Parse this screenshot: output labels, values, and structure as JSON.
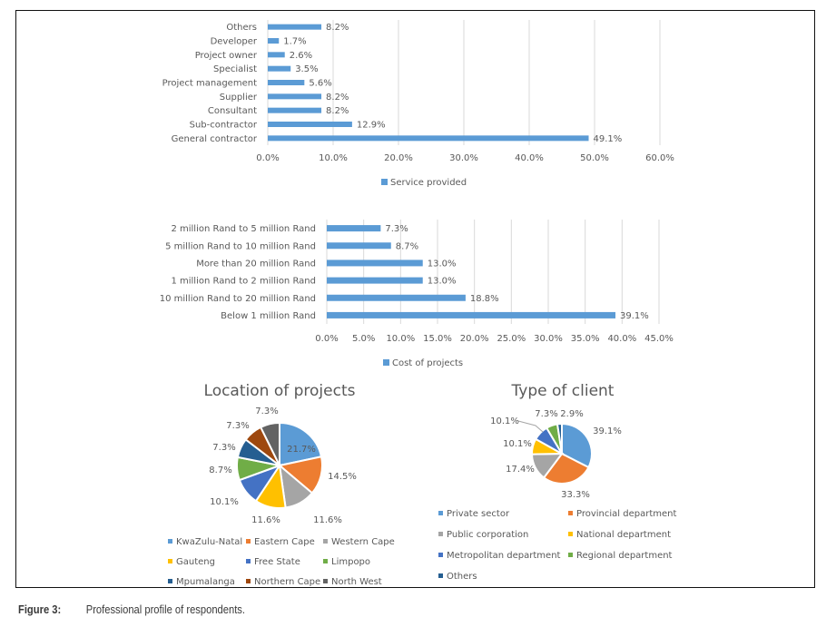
{
  "caption": {
    "figure_label": "Figure 3:",
    "text": "Professional profile of respondents."
  },
  "chart_data": [
    {
      "type": "bar",
      "orientation": "horizontal",
      "title": "",
      "categories": [
        "Others",
        "Developer",
        "Project owner",
        "Specialist",
        "Project management",
        "Supplier",
        "Consultant",
        "Sub-contractor",
        "General contractor"
      ],
      "series": [
        {
          "name": "Service provided",
          "values": [
            8.2,
            1.7,
            2.6,
            3.5,
            5.6,
            8.2,
            8.2,
            12.9,
            49.1
          ],
          "color": "#5B9BD5"
        }
      ],
      "data_labels": [
        "8.2%",
        "1.7%",
        "2.6%",
        "3.5%",
        "5.6%",
        "8.2%",
        "8.2%",
        "12.9%",
        "49.1%"
      ],
      "xlim": [
        0,
        60
      ],
      "xticks": [
        "0.0%",
        "10.0%",
        "20.0%",
        "30.0%",
        "40.0%",
        "50.0%",
        "60.0%"
      ],
      "xtick_values": [
        0,
        10,
        20,
        30,
        40,
        50,
        60
      ],
      "grid": true,
      "legend": "bottom",
      "xlabel": "",
      "ylabel": ""
    },
    {
      "type": "bar",
      "orientation": "horizontal",
      "title": "",
      "categories": [
        "2 million Rand to 5 million Rand",
        "5 million Rand to 10 million Rand",
        "More than 20 million Rand",
        "1 million Rand to 2 million Rand",
        "10 million Rand to 20 million Rand",
        "Below  1 million Rand"
      ],
      "series": [
        {
          "name": "Cost of projects",
          "values": [
            7.3,
            8.7,
            13.0,
            13.0,
            18.8,
            39.1
          ],
          "color": "#5B9BD5"
        }
      ],
      "data_labels": [
        "7.3%",
        "8.7%",
        "13.0%",
        "13.0%",
        "18.8%",
        "39.1%"
      ],
      "xlim": [
        0,
        45
      ],
      "xticks": [
        "0.0%",
        "5.0%",
        "10.0%",
        "15.0%",
        "20.0%",
        "25.0%",
        "30.0%",
        "35.0%",
        "40.0%",
        "45.0%"
      ],
      "xtick_values": [
        0,
        5,
        10,
        15,
        20,
        25,
        30,
        35,
        40,
        45
      ],
      "grid": true,
      "legend": "bottom",
      "xlabel": "",
      "ylabel": ""
    },
    {
      "type": "pie",
      "title": "Location of projects",
      "categories": [
        "KwaZulu-Natal",
        "Eastern Cape",
        "Western Cape",
        "Gauteng",
        "Free State",
        "Limpopo",
        "Mpumalanga",
        "Northern Cape",
        "North West"
      ],
      "values": [
        21.7,
        14.5,
        11.6,
        11.6,
        10.1,
        8.7,
        7.3,
        7.3,
        7.3
      ],
      "data_labels": [
        "21.7%",
        "14.5%",
        "11.6%",
        "11.6%",
        "10.1%",
        "8.7%",
        "7.3%",
        "7.3%",
        "7.3%"
      ],
      "colors": [
        "#5B9BD5",
        "#ED7D31",
        "#A5A5A5",
        "#FFC000",
        "#4472C4",
        "#70AD47",
        "#255E91",
        "#9E480E",
        "#636363"
      ],
      "legend": "bottom"
    },
    {
      "type": "pie",
      "title": "Type of client",
      "categories": [
        "Private sector",
        "Provincial department",
        "Public corporation",
        "National department",
        "Metropolitan department",
        "Regional department",
        "Others"
      ],
      "values": [
        39.1,
        33.3,
        17.4,
        10.1,
        10.1,
        7.3,
        2.9
      ],
      "data_labels": [
        "39.1%",
        "33.3%",
        "17.4%",
        "10.1%",
        "10.1%",
        "7.3%",
        "2.9%"
      ],
      "colors": [
        "#5B9BD5",
        "#ED7D31",
        "#A5A5A5",
        "#FFC000",
        "#4472C4",
        "#70AD47",
        "#255E91"
      ],
      "legend": "bottom"
    }
  ]
}
